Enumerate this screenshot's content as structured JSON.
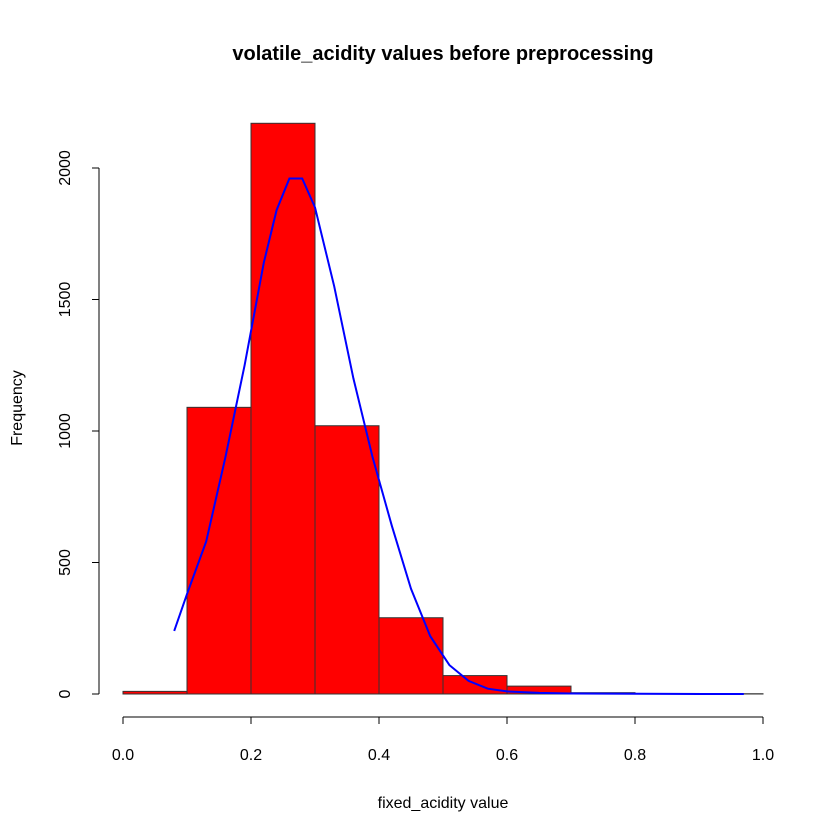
{
  "chart_data": {
    "type": "bar",
    "title": "volatile_acidity values before preprocessing",
    "xlabel": "fixed_acidity value",
    "ylabel": "Frequency",
    "xlim": [
      0,
      1
    ],
    "ylim": [
      0,
      2100
    ],
    "x_ticks": [
      "0.0",
      "0.2",
      "0.4",
      "0.6",
      "0.8",
      "1.0"
    ],
    "y_ticks": [
      "0",
      "500",
      "1000",
      "1500",
      "2000"
    ],
    "bins": [
      {
        "start": 0.0,
        "end": 0.1,
        "value": 10
      },
      {
        "start": 0.1,
        "end": 0.2,
        "value": 1090
      },
      {
        "start": 0.2,
        "end": 0.3,
        "value": 2170
      },
      {
        "start": 0.3,
        "end": 0.4,
        "value": 1020
      },
      {
        "start": 0.4,
        "end": 0.5,
        "value": 290
      },
      {
        "start": 0.5,
        "end": 0.6,
        "value": 70
      },
      {
        "start": 0.6,
        "end": 0.7,
        "value": 30
      },
      {
        "start": 0.7,
        "end": 0.8,
        "value": 5
      },
      {
        "start": 0.8,
        "end": 0.9,
        "value": 2
      },
      {
        "start": 0.9,
        "end": 1.0,
        "value": 1
      }
    ],
    "curve": {
      "x": [
        0.08,
        0.1,
        0.13,
        0.16,
        0.19,
        0.22,
        0.24,
        0.26,
        0.28,
        0.3,
        0.33,
        0.36,
        0.39,
        0.42,
        0.45,
        0.48,
        0.51,
        0.54,
        0.57,
        0.6,
        0.65,
        0.7,
        0.8,
        0.9,
        0.97
      ],
      "y": [
        240,
        380,
        580,
        900,
        1250,
        1640,
        1840,
        1960,
        1960,
        1850,
        1550,
        1200,
        900,
        640,
        400,
        220,
        110,
        50,
        20,
        10,
        4,
        2,
        1,
        0,
        0
      ]
    },
    "colors": {
      "bar_fill": "#ff0000",
      "bar_border": "#333333",
      "curve": "#0000ff",
      "axis": "#000000"
    },
    "grid": false
  }
}
